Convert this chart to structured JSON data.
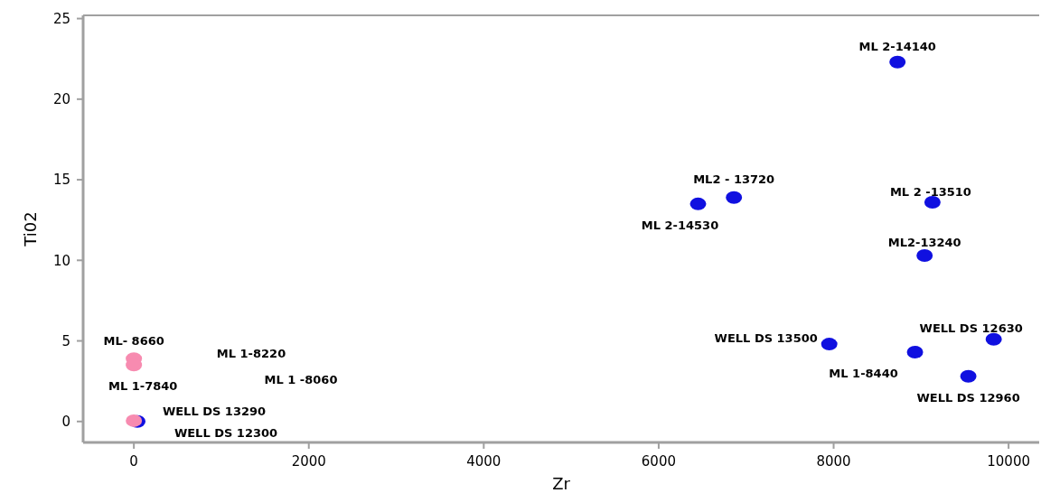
{
  "chart_data": {
    "type": "scatter",
    "xlabel": "Zr",
    "ylabel": "Ti02",
    "xlim": [
      -580,
      10350
    ],
    "ylim": [
      -1.3,
      25.2
    ],
    "xticks": [
      0,
      2000,
      4000,
      6000,
      8000,
      10000
    ],
    "yticks": [
      0,
      5,
      10,
      15,
      20,
      25
    ],
    "grid": false,
    "marker": "circle",
    "series": [
      {
        "color": "#1010e0",
        "x": [
          8730,
          6860,
          6450,
          9130,
          9040,
          7950,
          8930,
          9830,
          9540,
          40
        ],
        "values": [
          22.3,
          13.9,
          13.5,
          13.6,
          10.3,
          4.8,
          4.3,
          5.1,
          2.8,
          0
        ]
      },
      {
        "color": "#f78bb0",
        "x": [
          0,
          0,
          0
        ],
        "values": [
          3.9,
          3.5,
          0.05
        ]
      }
    ],
    "annotations": [
      {
        "text": "ML 2-14140",
        "x": 8730,
        "y": 22.3
      },
      {
        "text": "ML2 - 13720",
        "x": 6860,
        "y": 13.9
      },
      {
        "text": "ML 2-14530",
        "x": 6450,
        "y": 13.5
      },
      {
        "text": "ML 2 -13510",
        "x": 9130,
        "y": 13.6
      },
      {
        "text": "ML2-13240",
        "x": 9040,
        "y": 10.3
      },
      {
        "text": "WELL DS 13500",
        "x": 7950,
        "y": 4.8
      },
      {
        "text": "ML 1-8440",
        "x": 8930,
        "y": 4.3
      },
      {
        "text": "WELL DS 12630",
        "x": 9830,
        "y": 5.1
      },
      {
        "text": "WELL DS 12960",
        "x": 9540,
        "y": 2.8
      },
      "WELL DS 12300",
      {
        "text": "ML- 8660",
        "x": 0,
        "y": 3.9
      },
      "ML 1-8220",
      "ML 1 -8060",
      {
        "text": "ML 1-7840",
        "x": 0,
        "y": 3.5
      },
      "WELL DS 13290"
    ]
  }
}
